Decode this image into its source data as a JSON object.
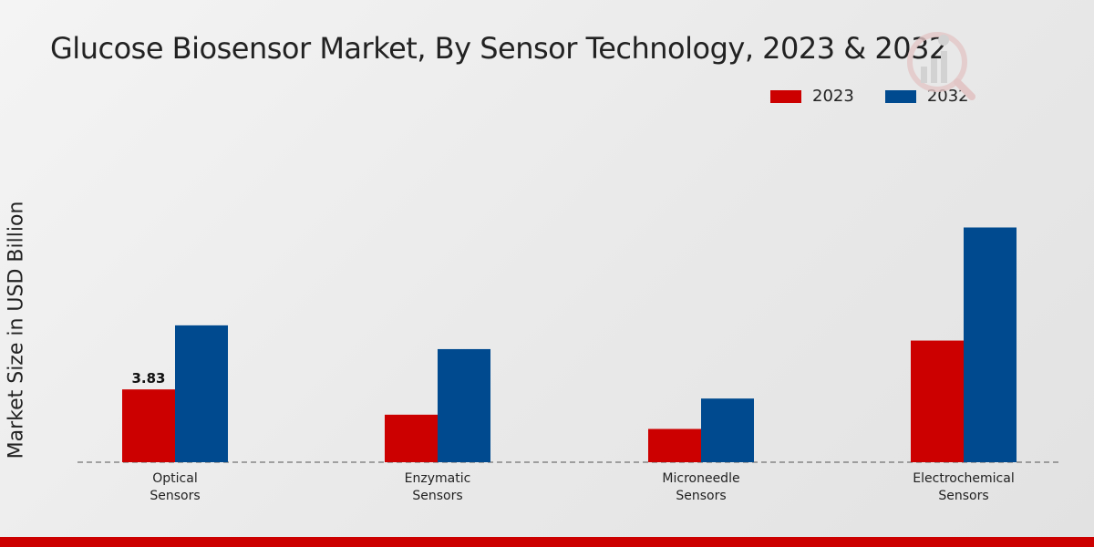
{
  "chart_data": {
    "type": "bar",
    "title": "Glucose Biosensor Market, By Sensor Technology, 2023 & 2032",
    "xlabel": "",
    "ylabel": "Market Size in USD Billion",
    "categories": [
      "Optical\nSensors",
      "Enzymatic\nSensors",
      "Microneedle\nSensors",
      "Electrochemical\nSensors"
    ],
    "series": [
      {
        "name": "2023",
        "color": "#cc0000",
        "values": [
          3.83,
          2.5,
          1.75,
          6.4
        ]
      },
      {
        "name": "2032",
        "color": "#004a8f",
        "values": [
          7.2,
          5.95,
          3.35,
          12.35
        ]
      }
    ],
    "data_labels": [
      {
        "series": "2023",
        "category_index": 0,
        "text": "3.83"
      }
    ],
    "ylim": [
      0,
      20
    ],
    "grid": false,
    "legend_position": "top-right"
  },
  "colors": {
    "accent_red": "#cc0000",
    "accent_blue": "#004a8f",
    "logo_icon": "chart-magnifier-logo"
  }
}
